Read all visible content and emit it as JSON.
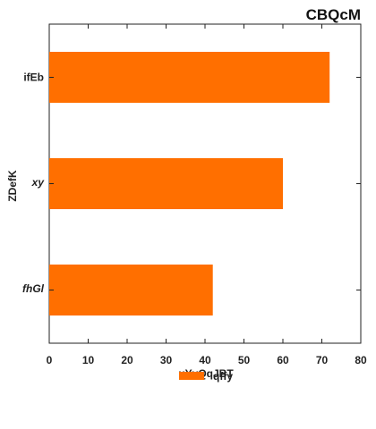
{
  "chart_data": {
    "type": "bar",
    "orientation": "horizontal",
    "title": "CBQcM",
    "xlabel": "uYyQqJBT",
    "ylabel": "ZDefK",
    "categories": [
      "ifEb",
      "xy",
      "fhGl"
    ],
    "series": [
      {
        "name": "qffy",
        "values": [
          72,
          60,
          42
        ],
        "color": "#ff6f00"
      }
    ],
    "xlim": [
      0,
      80
    ],
    "xticks": [
      0,
      10,
      20,
      30,
      40,
      50,
      60,
      70,
      80
    ],
    "grid": false,
    "legend_position": "bottom-center"
  }
}
